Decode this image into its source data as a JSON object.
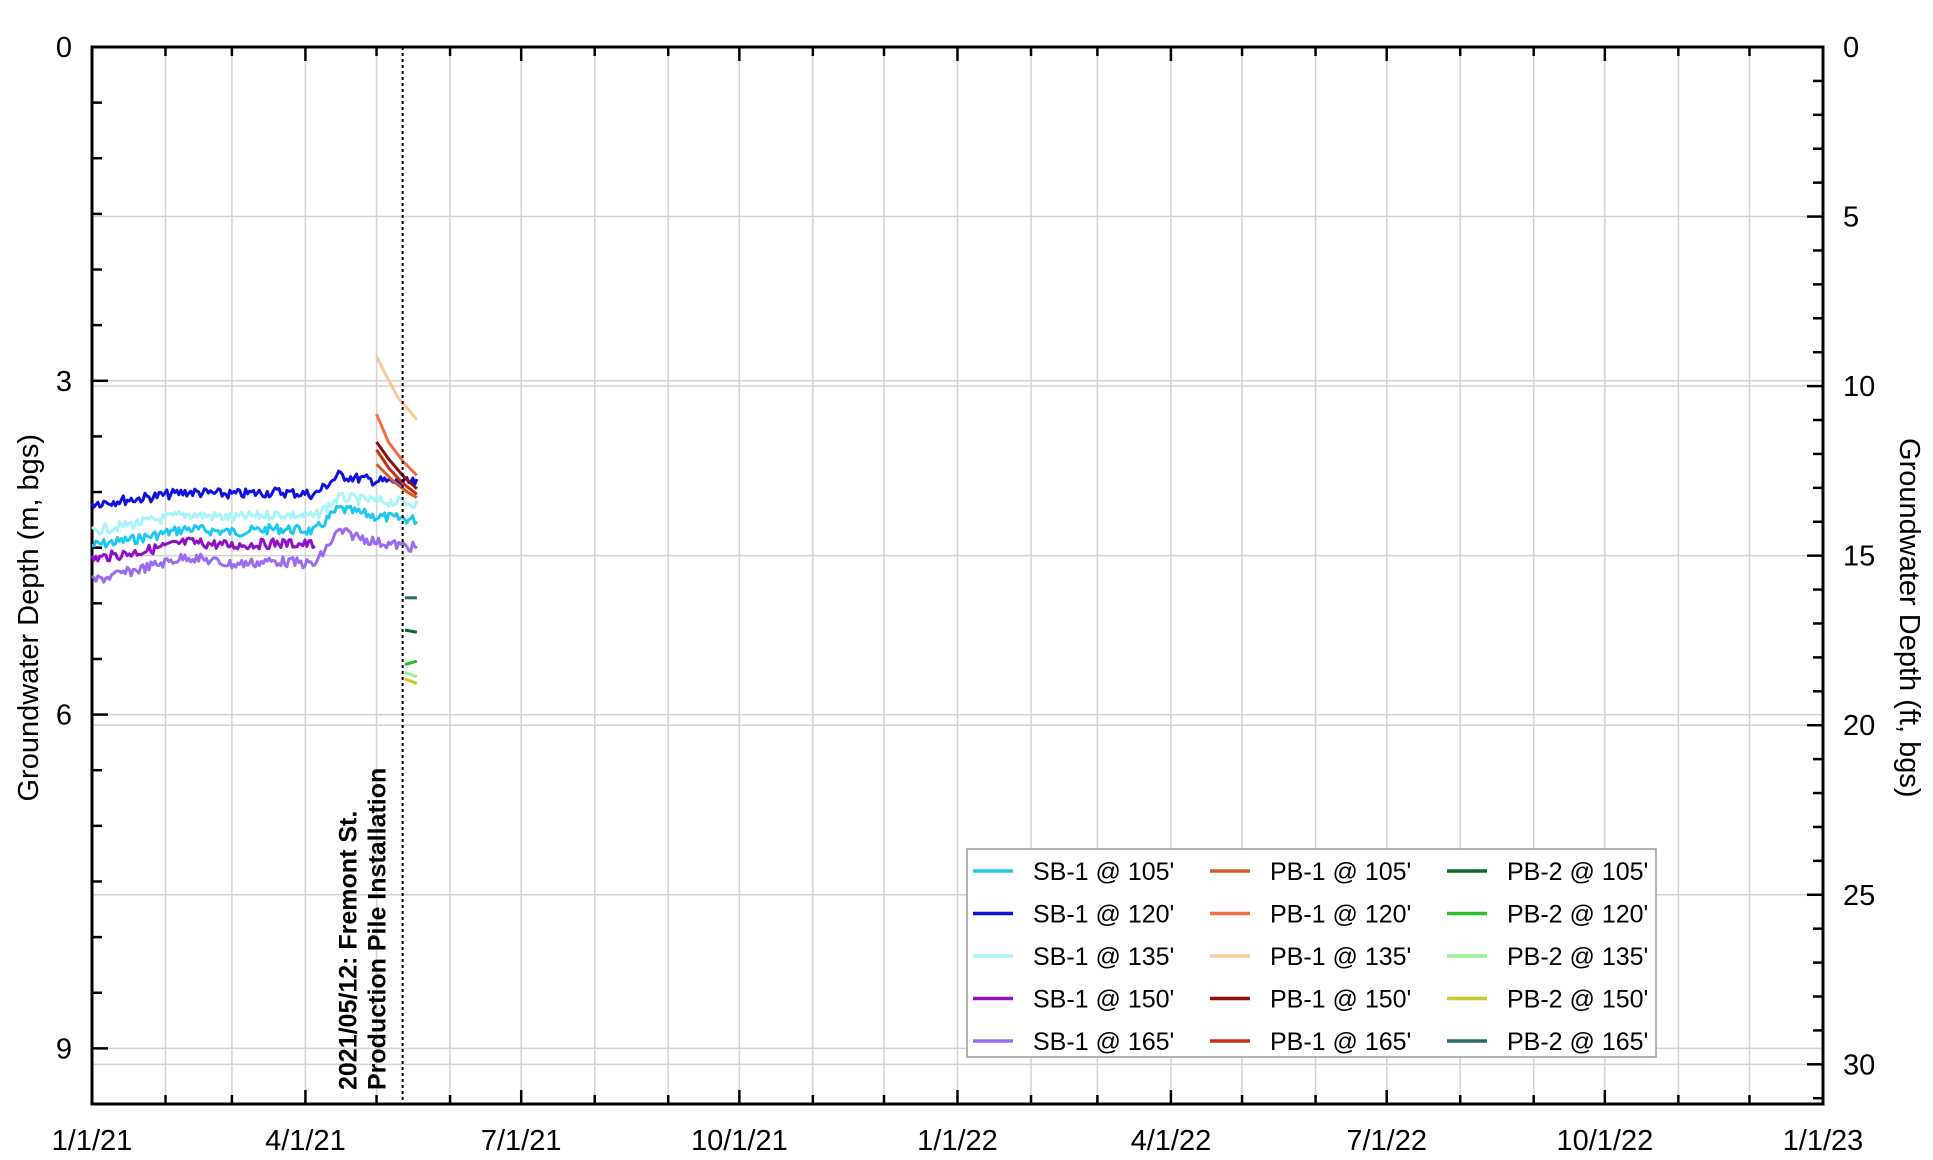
{
  "chart_data": {
    "type": "line",
    "title": "",
    "xlabel": "",
    "ylabel": "Groundwater Depth (m, bgs)",
    "ylabel_right": "Groundwater Depth (ft, bgs)",
    "xlim": [
      "2021-01-01",
      "2023-01-01"
    ],
    "ylim": [
      0,
      9.5
    ],
    "y_inverted": true,
    "ylim_right": [
      0,
      31.17
    ],
    "grid": true,
    "legend_position": "bottom-right",
    "x_tick_labels": [
      "1/1/21",
      "4/1/21",
      "7/1/21",
      "10/1/21",
      "1/1/22",
      "4/1/22",
      "7/1/22",
      "10/1/22",
      "1/1/23"
    ],
    "y_tick_labels": [
      "0",
      "3",
      "6",
      "9"
    ],
    "y_right_tick_labels": [
      "0",
      "5",
      "10",
      "15",
      "20",
      "25",
      "30"
    ],
    "annotation": {
      "date": "2021-05-12",
      "lines": [
        "2021/05/12: Fremont St.",
        "Production Pile Installation"
      ]
    },
    "series": [
      {
        "name": "SB-1 @ 105'",
        "color": "#1ec8f0",
        "points": [
          [
            "2021-01-01",
            4.48
          ],
          [
            "2021-01-20",
            4.42
          ],
          [
            "2021-02-10",
            4.33
          ],
          [
            "2021-03-01",
            4.36
          ],
          [
            "2021-03-20",
            4.33
          ],
          [
            "2021-04-05",
            4.35
          ],
          [
            "2021-04-15",
            4.15
          ],
          [
            "2021-05-01",
            4.22
          ],
          [
            "2021-05-18",
            4.25
          ]
        ]
      },
      {
        "name": "SB-1 @ 120'",
        "color": "#1010e0",
        "points": [
          [
            "2021-01-01",
            4.1
          ],
          [
            "2021-01-20",
            4.06
          ],
          [
            "2021-02-10",
            4.0
          ],
          [
            "2021-03-01",
            4.02
          ],
          [
            "2021-03-20",
            4.0
          ],
          [
            "2021-04-05",
            4.02
          ],
          [
            "2021-04-15",
            3.85
          ],
          [
            "2021-05-01",
            3.9
          ],
          [
            "2021-05-18",
            3.92
          ]
        ]
      },
      {
        "name": "SB-1 @ 135'",
        "color": "#a8f4f8",
        "points": [
          [
            "2021-01-01",
            4.35
          ],
          [
            "2021-01-20",
            4.28
          ],
          [
            "2021-02-10",
            4.2
          ],
          [
            "2021-03-01",
            4.23
          ],
          [
            "2021-03-20",
            4.2
          ],
          [
            "2021-04-05",
            4.22
          ],
          [
            "2021-04-15",
            4.05
          ],
          [
            "2021-05-01",
            4.08
          ],
          [
            "2021-05-18",
            4.1
          ]
        ]
      },
      {
        "name": "SB-1 @ 150'",
        "color": "#9010c8",
        "points": [
          [
            "2021-01-01",
            4.6
          ],
          [
            "2021-01-20",
            4.54
          ],
          [
            "2021-02-10",
            4.45
          ],
          [
            "2021-03-01",
            4.48
          ],
          [
            "2021-03-20",
            4.46
          ],
          [
            "2021-04-05",
            4.47
          ]
        ]
      },
      {
        "name": "SB-1 @ 165'",
        "color": "#9a6cf0",
        "points": [
          [
            "2021-01-01",
            4.8
          ],
          [
            "2021-01-20",
            4.7
          ],
          [
            "2021-02-10",
            4.58
          ],
          [
            "2021-03-01",
            4.65
          ],
          [
            "2021-03-20",
            4.62
          ],
          [
            "2021-04-05",
            4.65
          ],
          [
            "2021-04-15",
            4.35
          ],
          [
            "2021-05-01",
            4.45
          ],
          [
            "2021-05-18",
            4.5
          ]
        ]
      },
      {
        "name": "PB-1 @ 105'",
        "color": "#d0602a",
        "points": [
          [
            "2021-05-01",
            3.75
          ],
          [
            "2021-05-08",
            3.9
          ],
          [
            "2021-05-14",
            4.0
          ],
          [
            "2021-05-18",
            4.05
          ]
        ]
      },
      {
        "name": "PB-1 @ 120'",
        "color": "#f07040",
        "points": [
          [
            "2021-05-01",
            3.3
          ],
          [
            "2021-05-06",
            3.55
          ],
          [
            "2021-05-12",
            3.72
          ],
          [
            "2021-05-18",
            3.85
          ]
        ]
      },
      {
        "name": "PB-1 @ 135'",
        "color": "#f8c898",
        "points": [
          [
            "2021-05-01",
            2.78
          ],
          [
            "2021-05-05",
            2.95
          ],
          [
            "2021-05-10",
            3.15
          ],
          [
            "2021-05-18",
            3.35
          ]
        ]
      },
      {
        "name": "PB-1 @ 150'",
        "color": "#8c1010",
        "points": [
          [
            "2021-05-01",
            3.55
          ],
          [
            "2021-05-06",
            3.7
          ],
          [
            "2021-05-12",
            3.85
          ],
          [
            "2021-05-18",
            3.97
          ]
        ]
      },
      {
        "name": "PB-1 @ 165'",
        "color": "#c83010",
        "points": [
          [
            "2021-05-01",
            3.62
          ],
          [
            "2021-05-06",
            3.78
          ],
          [
            "2021-05-12",
            3.92
          ],
          [
            "2021-05-18",
            4.02
          ]
        ]
      },
      {
        "name": "PB-2 @ 105'",
        "color": "#0a6a2a",
        "points": [
          [
            "2021-05-13",
            5.24
          ],
          [
            "2021-05-18",
            5.26
          ]
        ]
      },
      {
        "name": "PB-2 @ 120'",
        "color": "#28c028",
        "points": [
          [
            "2021-05-13",
            5.55
          ],
          [
            "2021-05-18",
            5.52
          ]
        ]
      },
      {
        "name": "PB-2 @ 135'",
        "color": "#98f098",
        "points": [
          [
            "2021-05-13",
            5.62
          ],
          [
            "2021-05-18",
            5.66
          ]
        ]
      },
      {
        "name": "PB-2 @ 150'",
        "color": "#c8c828",
        "points": [
          [
            "2021-05-13",
            5.68
          ],
          [
            "2021-05-18",
            5.72
          ]
        ]
      },
      {
        "name": "PB-2 @ 165'",
        "color": "#2a6a6a",
        "points": [
          [
            "2021-05-13",
            4.95
          ],
          [
            "2021-05-18",
            4.95
          ]
        ]
      }
    ]
  }
}
